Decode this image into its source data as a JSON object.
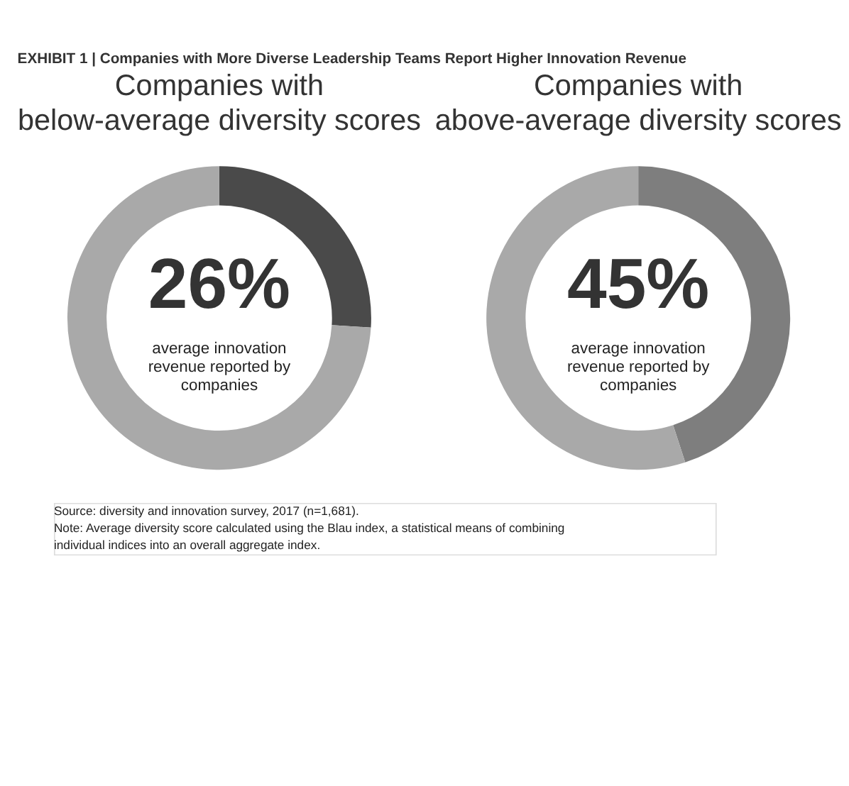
{
  "chart_data": [
    {
      "type": "donut",
      "title": "EXHIBIT 1 | Companies with More Diverse Leadership Teams Report Higher Innovation Revenue",
      "subtitle": "Companies with\nbelow-average diversity scores",
      "categories": [
        null,
        null
      ],
      "values": [
        26,
        74
      ],
      "colors": [
        "#4a4a4a",
        "#a9a9a9"
      ],
      "value_labels": [
        "26%",
        null
      ],
      "annotations": [
        "average innovation revenue reported by companies"
      ]
    },
    {
      "type": "donut",
      "subtitle": "Companies with\nabove-average diversity scores",
      "categories": [
        null,
        null
      ],
      "values": [
        45,
        55
      ],
      "colors": [
        "#7e7e7e",
        "#a9a9a9"
      ],
      "value_labels": [
        "45%",
        null
      ],
      "annotations": [
        "average innovation revenue reported by companies",
        "Source: diversity and innovation survey, 2017 (n=1,681).",
        "Note: Average diversity score calculated using the Blau index, a statistical means of combining individual indices into an overall aggregate index."
      ]
    }
  ]
}
